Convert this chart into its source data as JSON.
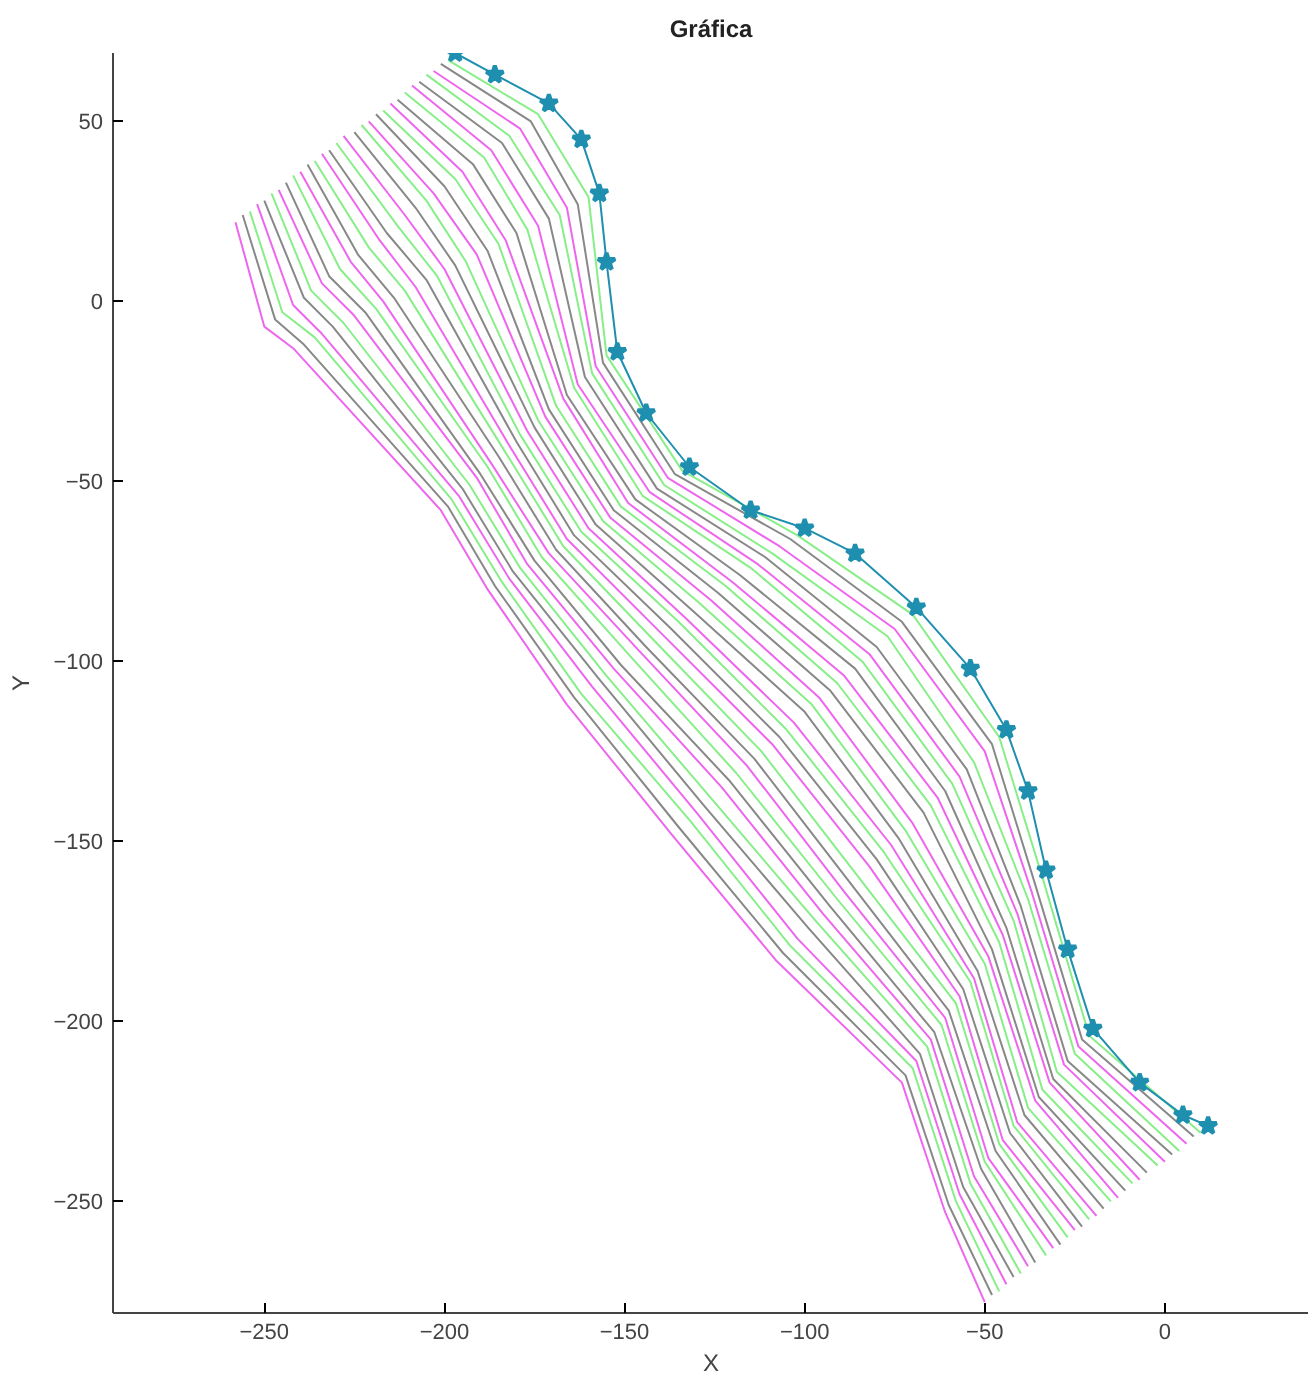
{
  "chart_data": {
    "type": "line",
    "title": "Gráfica",
    "xlabel": "X",
    "ylabel": "Y",
    "xlim": [
      -292,
      40
    ],
    "ylim": [
      -281,
      69
    ],
    "xticks": [
      -250,
      -200,
      -150,
      -100,
      -50,
      0
    ],
    "yticks": [
      -250,
      -200,
      -150,
      -100,
      -50,
      0,
      50
    ],
    "grid": false,
    "line_style": "solid",
    "series": [
      {
        "color": "#ee66ee",
        "x": [
          -258,
          -250,
          -242,
          -201,
          -188,
          -166,
          -137,
          -108,
          -73,
          -61,
          -50
        ],
        "values": [
          22,
          -7,
          -13,
          -58,
          -80,
          -112,
          -148,
          -183,
          -217,
          -253,
          -278
        ]
      },
      {
        "color": "#888888",
        "x": [
          -256,
          -247,
          -239,
          -199,
          -186,
          -164,
          -135,
          -106,
          -72,
          -60,
          -48
        ],
        "values": [
          24,
          -5,
          -12,
          -57,
          -79,
          -110,
          -146,
          -181,
          -215,
          -251,
          -276
        ]
      },
      {
        "color": "#88ee88",
        "x": [
          -254,
          -245,
          -236,
          -198,
          -184,
          -162,
          -132,
          -104,
          -70,
          -58,
          -46
        ],
        "values": [
          25,
          -3,
          -10,
          -55,
          -78,
          -109,
          -144,
          -179,
          -213,
          -250,
          -275
        ]
      },
      {
        "color": "#ee66ee",
        "x": [
          -252,
          -242,
          -234,
          -196,
          -182,
          -159,
          -130,
          -102,
          -69,
          -57,
          -44
        ],
        "values": [
          27,
          -1,
          -9,
          -54,
          -77,
          -107,
          -142,
          -177,
          -211,
          -248,
          -273
        ]
      },
      {
        "color": "#888888",
        "x": [
          -250,
          -239,
          -231,
          -195,
          -181,
          -157,
          -128,
          -99,
          -68,
          -56,
          -42
        ],
        "values": [
          28,
          1,
          -7,
          -52,
          -75,
          -105,
          -140,
          -174,
          -209,
          -246,
          -271
        ]
      },
      {
        "color": "#88ee88",
        "x": [
          -248,
          -237,
          -228,
          -193,
          -179,
          -155,
          -126,
          -97,
          -66,
          -54,
          -40
        ],
        "values": [
          30,
          3,
          -6,
          -51,
          -74,
          -104,
          -138,
          -172,
          -207,
          -245,
          -270
        ]
      },
      {
        "color": "#ee66ee",
        "x": [
          -246,
          -234,
          -225,
          -191,
          -177,
          -153,
          -123,
          -95,
          -65,
          -53,
          -38
        ],
        "values": [
          31,
          5,
          -4,
          -49,
          -73,
          -102,
          -135,
          -170,
          -205,
          -243,
          -268
        ]
      },
      {
        "color": "#888888",
        "x": [
          -244,
          -232,
          -222,
          -190,
          -175,
          -151,
          -121,
          -93,
          -64,
          -51,
          -36
        ],
        "values": [
          33,
          7,
          -3,
          -48,
          -72,
          -101,
          -133,
          -168,
          -203,
          -241,
          -267
        ]
      },
      {
        "color": "#88ee88",
        "x": [
          -242,
          -229,
          -219,
          -188,
          -173,
          -148,
          -119,
          -91,
          -62,
          -50,
          -33
        ],
        "values": [
          35,
          9,
          -2,
          -46,
          -71,
          -99,
          -131,
          -166,
          -201,
          -239,
          -265
        ]
      },
      {
        "color": "#ee66ee",
        "x": [
          -240,
          -226,
          -217,
          -187,
          -171,
          -146,
          -116,
          -89,
          -61,
          -49,
          -31
        ],
        "values": [
          36,
          11,
          0,
          -45,
          -70,
          -97,
          -129,
          -164,
          -199,
          -238,
          -263
        ]
      },
      {
        "color": "#888888",
        "x": [
          -238,
          -224,
          -214,
          -185,
          -169,
          -144,
          -114,
          -87,
          -60,
          -47,
          -29
        ],
        "values": [
          38,
          13,
          1,
          -43,
          -69,
          -96,
          -127,
          -162,
          -197,
          -236,
          -262
        ]
      },
      {
        "color": "#88ee88",
        "x": [
          -236,
          -221,
          -211,
          -183,
          -167,
          -142,
          -112,
          -85,
          -58,
          -46,
          -27
        ],
        "values": [
          39,
          15,
          3,
          -42,
          -68,
          -94,
          -125,
          -160,
          -195,
          -234,
          -260
        ]
      },
      {
        "color": "#ee66ee",
        "x": [
          -234,
          -218,
          -208,
          -182,
          -166,
          -140,
          -109,
          -82,
          -57,
          -45,
          -25
        ],
        "values": [
          41,
          17,
          4,
          -40,
          -66,
          -92,
          -123,
          -157,
          -193,
          -233,
          -258
        ]
      },
      {
        "color": "#888888",
        "x": [
          -232,
          -216,
          -205,
          -180,
          -164,
          -137,
          -107,
          -80,
          -56,
          -43,
          -23
        ],
        "values": [
          42,
          19,
          6,
          -39,
          -65,
          -91,
          -121,
          -155,
          -191,
          -231,
          -257
        ]
      },
      {
        "color": "#88ee88",
        "x": [
          -230,
          -213,
          -202,
          -179,
          -162,
          -135,
          -105,
          -78,
          -54,
          -42,
          -21
        ],
        "values": [
          44,
          21,
          7,
          -37,
          -64,
          -89,
          -119,
          -153,
          -189,
          -229,
          -255
        ]
      },
      {
        "color": "#ee66ee",
        "x": [
          -228,
          -211,
          -200,
          -177,
          -160,
          -133,
          -103,
          -76,
          -53,
          -41,
          -19
        ],
        "values": [
          46,
          24,
          9,
          -36,
          -63,
          -88,
          -117,
          -151,
          -188,
          -228,
          -254
        ]
      },
      {
        "color": "#888888",
        "x": [
          -225,
          -208,
          -197,
          -175,
          -158,
          -131,
          -100,
          -74,
          -52,
          -39,
          -17
        ],
        "values": [
          47,
          26,
          10,
          -35,
          -62,
          -86,
          -114,
          -149,
          -186,
          -226,
          -252
        ]
      },
      {
        "color": "#88ee88",
        "x": [
          -223,
          -205,
          -194,
          -174,
          -156,
          -129,
          -98,
          -72,
          -50,
          -38,
          -15
        ],
        "values": [
          49,
          28,
          11,
          -33,
          -61,
          -84,
          -112,
          -147,
          -184,
          -224,
          -250
        ]
      },
      {
        "color": "#ee66ee",
        "x": [
          -221,
          -203,
          -191,
          -172,
          -154,
          -126,
          -96,
          -70,
          -49,
          -36,
          -13
        ],
        "values": [
          50,
          30,
          13,
          -32,
          -60,
          -83,
          -110,
          -145,
          -182,
          -222,
          -249
        ]
      },
      {
        "color": "#888888",
        "x": [
          -219,
          -200,
          -188,
          -171,
          -153,
          -124,
          -93,
          -67,
          -48,
          -35,
          -11
        ],
        "values": [
          52,
          32,
          14,
          -30,
          -58,
          -81,
          -108,
          -142,
          -180,
          -221,
          -247
        ]
      },
      {
        "color": "#88ee88",
        "x": [
          -217,
          -197,
          -185,
          -169,
          -151,
          -122,
          -91,
          -65,
          -46,
          -34,
          -9
        ],
        "values": [
          53,
          34,
          16,
          -29,
          -57,
          -79,
          -106,
          -140,
          -178,
          -219,
          -245
        ]
      },
      {
        "color": "#ee66ee",
        "x": [
          -215,
          -195,
          -183,
          -167,
          -149,
          -120,
          -89,
          -63,
          -45,
          -32,
          -7
        ],
        "values": [
          55,
          36,
          17,
          -27,
          -56,
          -78,
          -104,
          -138,
          -176,
          -217,
          -244
        ]
      },
      {
        "color": "#888888",
        "x": [
          -213,
          -192,
          -180,
          -166,
          -147,
          -118,
          -86,
          -61,
          -44,
          -31,
          -5
        ],
        "values": [
          56,
          38,
          19,
          -26,
          -55,
          -76,
          -102,
          -136,
          -174,
          -216,
          -242
        ]
      },
      {
        "color": "#88ee88",
        "x": [
          -211,
          -189,
          -177,
          -164,
          -145,
          -115,
          -84,
          -59,
          -42,
          -30,
          -2
        ],
        "values": [
          58,
          40,
          20,
          -24,
          -54,
          -74,
          -100,
          -134,
          -172,
          -214,
          -240
        ]
      },
      {
        "color": "#ee66ee",
        "x": [
          -209,
          -187,
          -174,
          -163,
          -143,
          -113,
          -82,
          -57,
          -41,
          -28,
          0
        ],
        "values": [
          60,
          42,
          21,
          -23,
          -53,
          -73,
          -98,
          -132,
          -170,
          -212,
          -239
        ]
      },
      {
        "color": "#888888",
        "x": [
          -207,
          -184,
          -171,
          -161,
          -141,
          -111,
          -80,
          -55,
          -40,
          -27,
          2
        ],
        "values": [
          61,
          44,
          23,
          -21,
          -52,
          -71,
          -96,
          -130,
          -168,
          -211,
          -237
        ]
      },
      {
        "color": "#88ee88",
        "x": [
          -205,
          -182,
          -168,
          -159,
          -139,
          -109,
          -77,
          -53,
          -38,
          -25,
          4
        ],
        "values": [
          63,
          46,
          24,
          -20,
          -51,
          -70,
          -93,
          -128,
          -166,
          -209,
          -236
        ]
      },
      {
        "color": "#ee66ee",
        "x": [
          -203,
          -179,
          -166,
          -158,
          -138,
          -107,
          -75,
          -50,
          -37,
          -24,
          6
        ],
        "values": [
          64,
          48,
          26,
          -18,
          -49,
          -68,
          -91,
          -125,
          -164,
          -207,
          -234
        ]
      },
      {
        "color": "#888888",
        "x": [
          -201,
          -176,
          -163,
          -156,
          -136,
          -104,
          -73,
          -48,
          -36,
          -23,
          8
        ],
        "values": [
          66,
          50,
          27,
          -17,
          -48,
          -66,
          -89,
          -123,
          -162,
          -205,
          -232
        ]
      },
      {
        "color": "#88ee88",
        "x": [
          -199,
          -174,
          -160,
          -155,
          -134,
          -102,
          -70,
          -46,
          -34,
          -21,
          10
        ],
        "values": [
          67,
          52,
          29,
          -15,
          -47,
          -65,
          -87,
          -121,
          -160,
          -204,
          -231
        ]
      },
      {
        "color": "#1f8fb0",
        "marker": "star",
        "x": [
          -197,
          -186,
          -171,
          -162,
          -157,
          -155,
          -152,
          -144,
          -132,
          -115,
          -100,
          -86,
          -69,
          -54,
          -44,
          -38,
          -33,
          -27,
          -20,
          -7,
          5,
          12
        ],
        "values": [
          69,
          63,
          55,
          45,
          30,
          11,
          -14,
          -31,
          -46,
          -58,
          -63,
          -70,
          -85,
          -102,
          -119,
          -136,
          -158,
          -180,
          -202,
          -217,
          -226,
          -229
        ]
      }
    ]
  }
}
